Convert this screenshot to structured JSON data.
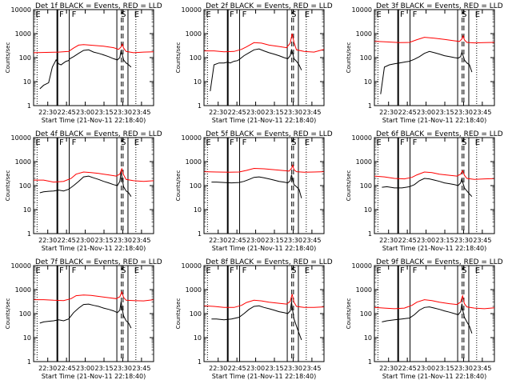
{
  "page": {
    "background": "#ffffff"
  },
  "styles": {
    "events_color": "#000000",
    "lld_color": "#ff0000"
  },
  "chart_data": {
    "type": "line",
    "panel_title_suffix": "BLACK = Events, RED = LLD",
    "xlabel": "Start Time (21-Nov-11 22:18:40)",
    "ylabel": "Counts/sec",
    "xtick_labels": [
      "22:30",
      "22:45",
      "23:00",
      "23:15",
      "23:30",
      "23:45"
    ],
    "xtick_minutes": [
      11.33,
      26.33,
      41.33,
      56.33,
      71.33,
      86.33
    ],
    "xlim": [
      0,
      96
    ],
    "ylim": [
      1,
      10000
    ],
    "yscale": "log",
    "ytick_labels": [
      "1",
      "10",
      "100",
      "1000",
      "10000"
    ],
    "ytick_values": [
      1,
      10,
      100,
      1000,
      10000
    ],
    "markers": {
      "solid_lines": [
        19,
        28.5,
        66.6,
        75.5
      ],
      "dashed_lines": [
        70.2,
        71.6
      ],
      "dotted_lines": [
        2.8,
        81.8
      ],
      "labels": [
        {
          "text": "E",
          "x": 1.5
        },
        {
          "text": "F",
          "x": 20.5
        },
        {
          "text": "F",
          "x": 30.5
        },
        {
          "text": "S",
          "x": 69.8
        },
        {
          "text": "E",
          "x": 80.5
        }
      ]
    },
    "panels": [
      {
        "title": "Det 1f",
        "series": [
          {
            "name": "Events",
            "color": "#000000",
            "x": [
              5,
              8,
              12,
              15,
              18,
              20,
              22,
              24,
              26,
              28,
              29,
              32,
              36,
              40,
              44,
              48,
              52,
              56,
              60,
              64,
              67,
              69,
              70,
              71,
              72,
              74,
              76,
              78
            ],
            "y": [
              5,
              7,
              9,
              40,
              80,
              55,
              50,
              60,
              70,
              75,
              90,
              110,
              150,
              200,
              210,
              170,
              150,
              130,
              110,
              90,
              80,
              100,
              200,
              130,
              80,
              60,
              50,
              40
            ]
          },
          {
            "name": "LLD",
            "color": "#ff0000",
            "x": [
              0,
              10,
              20,
              28,
              32,
              36,
              40,
              48,
              56,
              64,
              68,
              70,
              71,
              72,
              74,
              80,
              88,
              96
            ],
            "y": [
              160,
              165,
              170,
              180,
              250,
              330,
              350,
              320,
              300,
              260,
              220,
              280,
              360,
              250,
              180,
              160,
              170,
              175
            ]
          }
        ]
      },
      {
        "title": "Det 2f",
        "series": [
          {
            "name": "Events",
            "color": "#000000",
            "x": [
              5,
              8,
              12,
              16,
              19,
              21,
              24,
              27,
              29,
              32,
              36,
              40,
              44,
              48,
              52,
              56,
              60,
              64,
              67,
              69,
              70,
              71,
              72,
              74,
              76,
              78
            ],
            "y": [
              4,
              50,
              60,
              60,
              65,
              60,
              70,
              75,
              90,
              120,
              160,
              210,
              230,
              190,
              160,
              140,
              120,
              100,
              90,
              120,
              220,
              150,
              90,
              70,
              50,
              30
            ]
          },
          {
            "name": "LLD",
            "color": "#ff0000",
            "x": [
              0,
              8,
              16,
              24,
              30,
              34,
              40,
              46,
              52,
              60,
              66,
              69,
              70.5,
              72,
              74,
              80,
              88,
              96
            ],
            "y": [
              190,
              190,
              175,
              180,
              220,
              280,
              420,
              400,
              330,
              290,
              260,
              400,
              1000,
              430,
              210,
              180,
              170,
              220
            ]
          }
        ]
      },
      {
        "title": "Det 3f",
        "series": [
          {
            "name": "Events",
            "color": "#000000",
            "x": [
              5,
              8,
              12,
              16,
              20,
              24,
              28,
              32,
              36,
              40,
              44,
              48,
              52,
              56,
              60,
              64,
              67,
              69,
              70,
              71,
              72,
              74,
              76,
              78
            ],
            "y": [
              3,
              40,
              50,
              55,
              60,
              65,
              70,
              85,
              110,
              150,
              180,
              160,
              140,
              120,
              110,
              100,
              95,
              110,
              170,
              120,
              80,
              60,
              50,
              25
            ]
          },
          {
            "name": "LLD",
            "color": "#ff0000",
            "x": [
              0,
              10,
              20,
              28,
              34,
              40,
              48,
              56,
              64,
              68,
              70,
              71,
              72,
              74,
              80,
              88,
              96
            ],
            "y": [
              480,
              450,
              420,
              430,
              560,
              700,
              640,
              570,
              500,
              470,
              600,
              800,
              550,
              430,
              410,
              420,
              430
            ]
          }
        ]
      },
      {
        "title": "Det 4f",
        "series": [
          {
            "name": "Events",
            "color": "#000000",
            "x": [
              5,
              8,
              12,
              16,
              20,
              24,
              28,
              32,
              36,
              40,
              44,
              48,
              52,
              56,
              60,
              64,
              67,
              69,
              70,
              71,
              72,
              74,
              76,
              78
            ],
            "y": [
              50,
              55,
              58,
              60,
              65,
              60,
              70,
              100,
              150,
              230,
              250,
              210,
              180,
              150,
              130,
              110,
              100,
              150,
              380,
              180,
              90,
              60,
              50,
              35
            ]
          },
          {
            "name": "LLD",
            "color": "#ff0000",
            "x": [
              0,
              8,
              16,
              24,
              30,
              34,
              40,
              46,
              52,
              60,
              66,
              69,
              70.5,
              72,
              74,
              80,
              88,
              96
            ],
            "y": [
              170,
              170,
              140,
              150,
              200,
              300,
              370,
              350,
              320,
              280,
              250,
              300,
              500,
              280,
              180,
              160,
              150,
              160
            ]
          }
        ]
      },
      {
        "title": "Det 5f",
        "series": [
          {
            "name": "Events",
            "color": "#000000",
            "x": [
              6,
              10,
              16,
              22,
              28,
              32,
              36,
              40,
              44,
              48,
              52,
              56,
              60,
              64,
              67,
              69,
              70,
              71,
              72,
              74,
              76,
              78
            ],
            "y": [
              140,
              140,
              135,
              130,
              135,
              150,
              180,
              220,
              230,
              210,
              190,
              170,
              150,
              140,
              130,
              160,
              280,
              170,
              110,
              90,
              70,
              30
            ]
          },
          {
            "name": "LLD",
            "color": "#ff0000",
            "x": [
              0,
              10,
              20,
              28,
              34,
              40,
              48,
              56,
              64,
              68,
              70,
              71,
              72,
              74,
              80,
              88,
              96
            ],
            "y": [
              380,
              370,
              360,
              370,
              430,
              520,
              500,
              460,
              420,
              400,
              520,
              700,
              460,
              380,
              360,
              370,
              380
            ]
          }
        ]
      },
      {
        "title": "Det 6f",
        "series": [
          {
            "name": "Events",
            "color": "#000000",
            "x": [
              6,
              10,
              16,
              22,
              28,
              32,
              36,
              40,
              44,
              48,
              52,
              56,
              60,
              64,
              67,
              69,
              70,
              71,
              72,
              74,
              76,
              78
            ],
            "y": [
              85,
              90,
              80,
              80,
              90,
              110,
              160,
              200,
              190,
              170,
              150,
              130,
              120,
              110,
              100,
              130,
              200,
              120,
              80,
              60,
              45,
              35
            ]
          },
          {
            "name": "LLD",
            "color": "#ff0000",
            "x": [
              0,
              8,
              16,
              24,
              30,
              34,
              40,
              46,
              52,
              60,
              66,
              69,
              70.5,
              72,
              74,
              80,
              88,
              96
            ],
            "y": [
              250,
              230,
              200,
              190,
              220,
              280,
              370,
              350,
              300,
              270,
              250,
              300,
              420,
              270,
              200,
              180,
              190,
              195
            ]
          }
        ]
      },
      {
        "title": "Det 7f",
        "series": [
          {
            "name": "Events",
            "color": "#000000",
            "x": [
              5,
              8,
              12,
              16,
              20,
              24,
              28,
              32,
              36,
              40,
              44,
              48,
              52,
              56,
              60,
              64,
              67,
              69,
              70,
              71,
              72,
              74,
              76,
              78
            ],
            "y": [
              40,
              45,
              48,
              50,
              55,
              50,
              60,
              110,
              170,
              240,
              250,
              220,
              200,
              170,
              150,
              130,
              110,
              140,
              320,
              150,
              80,
              50,
              40,
              25
            ]
          },
          {
            "name": "LLD",
            "color": "#ff0000",
            "x": [
              0,
              8,
              16,
              24,
              30,
              34,
              40,
              46,
              52,
              60,
              66,
              69,
              70.5,
              72,
              74,
              80,
              88,
              96
            ],
            "y": [
              380,
              380,
              360,
              350,
              420,
              560,
              600,
              570,
              520,
              460,
              420,
              500,
              800,
              470,
              360,
              350,
              340,
              380
            ]
          }
        ]
      },
      {
        "title": "Det 8f",
        "series": [
          {
            "name": "Events",
            "color": "#000000",
            "x": [
              6,
              10,
              16,
              22,
              28,
              32,
              36,
              40,
              44,
              48,
              52,
              56,
              60,
              64,
              67,
              69,
              70,
              71,
              72,
              74,
              76,
              78
            ],
            "y": [
              60,
              60,
              55,
              60,
              70,
              100,
              150,
              200,
              210,
              180,
              160,
              140,
              120,
              110,
              100,
              130,
              300,
              130,
              60,
              30,
              15,
              8
            ]
          },
          {
            "name": "LLD",
            "color": "#ff0000",
            "x": [
              0,
              8,
              16,
              24,
              30,
              34,
              40,
              46,
              52,
              60,
              66,
              69,
              70.5,
              72,
              74,
              80,
              88,
              96
            ],
            "y": [
              210,
              200,
              180,
              180,
              220,
              290,
              360,
              340,
              300,
              270,
              250,
              320,
              650,
              300,
              200,
              180,
              180,
              190
            ]
          }
        ]
      },
      {
        "title": "Det 9f",
        "series": [
          {
            "name": "Events",
            "color": "#000000",
            "x": [
              6,
              10,
              16,
              22,
              28,
              32,
              36,
              40,
              44,
              48,
              52,
              56,
              60,
              64,
              67,
              69,
              70,
              71,
              72,
              74,
              76,
              78
            ],
            "y": [
              45,
              50,
              55,
              60,
              65,
              90,
              140,
              180,
              190,
              170,
              150,
              130,
              115,
              100,
              90,
              120,
              260,
              120,
              70,
              45,
              30,
              15
            ]
          },
          {
            "name": "LLD",
            "color": "#ff0000",
            "x": [
              0,
              8,
              16,
              24,
              30,
              34,
              40,
              46,
              52,
              60,
              66,
              69,
              70.5,
              72,
              74,
              80,
              88,
              96
            ],
            "y": [
              180,
              170,
              160,
              170,
              220,
              300,
              380,
              350,
              300,
              260,
              240,
              300,
              550,
              260,
              190,
              170,
              160,
              175
            ]
          }
        ]
      }
    ]
  }
}
